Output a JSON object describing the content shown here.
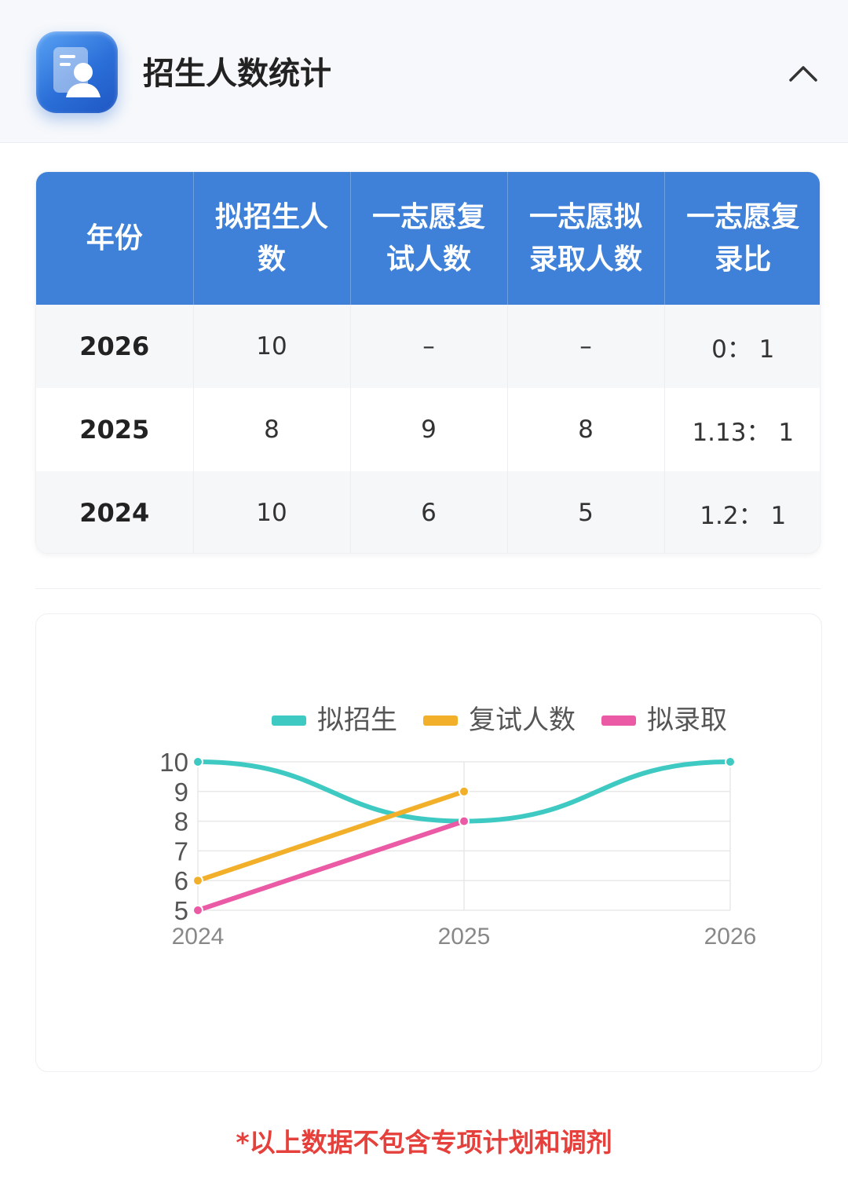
{
  "header": {
    "title": "招生人数统计",
    "icon": "student-profile-icon",
    "collapse_icon": "chevron-up-icon"
  },
  "table": {
    "headers": [
      "年份",
      "拟招生人数",
      "一志愿复试人数",
      "一志愿拟录取人数",
      "一志愿复录比"
    ],
    "rows": [
      [
        "2026",
        "10",
        "–",
        "–",
        "0： 1"
      ],
      [
        "2025",
        "8",
        "9",
        "8",
        "1.13： 1"
      ],
      [
        "2024",
        "10",
        "6",
        "5",
        "1.2： 1"
      ]
    ]
  },
  "chart_data": {
    "type": "line",
    "title": "",
    "xlabel": "",
    "ylabel": "",
    "x": [
      "2024",
      "2025",
      "2026"
    ],
    "ylim": [
      5,
      10
    ],
    "yticks": [
      "5",
      "6",
      "7",
      "8",
      "9",
      "10"
    ],
    "grid": true,
    "legend_placement": "top",
    "series": [
      {
        "name": "拟招生",
        "values": [
          10,
          8,
          10
        ],
        "color": "#3ecac2",
        "smooth": true
      },
      {
        "name": "复试人数",
        "values": [
          6,
          9,
          null
        ],
        "color": "#f2b02a"
      },
      {
        "name": "拟录取",
        "values": [
          5,
          8,
          null
        ],
        "color": "#ea5aa5"
      }
    ]
  },
  "footnote": "*以上数据不包含专项计划和调剂"
}
